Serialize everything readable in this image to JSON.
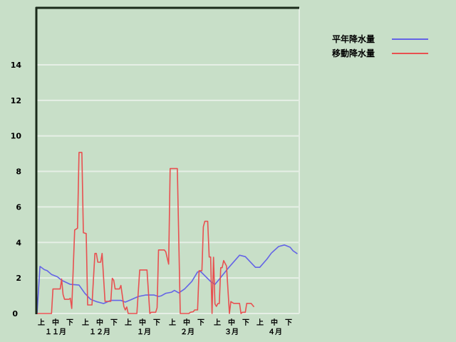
{
  "chart_data": {
    "type": "line",
    "title": "",
    "xlabel": "",
    "ylabel": "",
    "ylim": [
      0,
      17.2
    ],
    "yticks": [
      0,
      2,
      4,
      6,
      8,
      10,
      12,
      14
    ],
    "grid": true,
    "legend_position": "top-right",
    "x_range": [
      "11/1",
      "4/30"
    ],
    "x_dekad_labels": [
      "上",
      "中",
      "下",
      "上",
      "中",
      "下",
      "上",
      "中",
      "下",
      "上",
      "中",
      "下",
      "上",
      "中",
      "下",
      "上",
      "中",
      "下"
    ],
    "x_month_labels": [
      "１１月",
      "１２月",
      "１月",
      "２月",
      "３月",
      "４月"
    ],
    "series": [
      {
        "name": "平年降水量",
        "color": "#6464e6",
        "points": [
          [
            "11/1",
            0
          ],
          [
            "11/3",
            2.65
          ],
          [
            "11/6",
            2.47
          ],
          [
            "11/8",
            2.41
          ],
          [
            "11/11",
            2.2
          ],
          [
            "11/15",
            2.07
          ],
          [
            "11/18",
            1.87
          ],
          [
            "11/24",
            1.64
          ],
          [
            "11/30",
            1.6
          ],
          [
            "12/4",
            1.14
          ],
          [
            "12/8",
            0.8
          ],
          [
            "12/12",
            0.67
          ],
          [
            "12/17",
            0.56
          ],
          [
            "12/22",
            0.74
          ],
          [
            "12/29",
            0.74
          ],
          [
            "1/1",
            0.64
          ],
          [
            "1/5",
            0.78
          ],
          [
            "1/10",
            0.96
          ],
          [
            "1/15",
            1.04
          ],
          [
            "1/21",
            1.04
          ],
          [
            "1/24",
            0.96
          ],
          [
            "1/26",
            1.0
          ],
          [
            "1/29",
            1.14
          ],
          [
            "2/2",
            1.2
          ],
          [
            "2/4",
            1.3
          ],
          [
            "2/7",
            1.16
          ],
          [
            "2/11",
            1.38
          ],
          [
            "2/16",
            1.8
          ],
          [
            "2/20",
            2.34
          ],
          [
            "2/22",
            2.37
          ],
          [
            "3/1",
            1.8
          ],
          [
            "3/4",
            1.64
          ],
          [
            "3/7",
            1.93
          ],
          [
            "3/13",
            2.54
          ],
          [
            "3/21",
            3.28
          ],
          [
            "3/25",
            3.2
          ],
          [
            "4/1",
            2.6
          ],
          [
            "4/4",
            2.6
          ],
          [
            "4/9",
            3.07
          ],
          [
            "4/12",
            3.4
          ],
          [
            "4/17",
            3.77
          ],
          [
            "4/21",
            3.86
          ],
          [
            "4/25",
            3.73
          ],
          [
            "4/27",
            3.53
          ],
          [
            "4/30",
            3.36
          ]
        ]
      },
      {
        "name": "移動降水量",
        "color": "#e85050",
        "points": [
          [
            "11/1",
            0
          ],
          [
            "11/11",
            0
          ],
          [
            "11/12",
            1.38
          ],
          [
            "11/17",
            1.38
          ],
          [
            "11/18",
            1.94
          ],
          [
            "11/19",
            1.07
          ],
          [
            "11/20",
            0.8
          ],
          [
            "11/23",
            0.8
          ],
          [
            "11/24",
            0.86
          ],
          [
            "11/25",
            0.28
          ],
          [
            "11/27",
            4.7
          ],
          [
            "11/29",
            4.8
          ],
          [
            "11/30",
            9.07
          ],
          [
            "12/2",
            9.07
          ],
          [
            "12/3",
            4.55
          ],
          [
            "12/5",
            4.5
          ],
          [
            "12/6",
            0.48
          ],
          [
            "12/9",
            0.48
          ],
          [
            "12/11",
            3.38
          ],
          [
            "12/12",
            3.38
          ],
          [
            "12/13",
            2.89
          ],
          [
            "12/15",
            2.89
          ],
          [
            "12/16",
            3.38
          ],
          [
            "12/18",
            0.68
          ],
          [
            "12/22",
            0.68
          ],
          [
            "12/23",
            1.98
          ],
          [
            "12/24",
            1.87
          ],
          [
            "12/25",
            1.38
          ],
          [
            "12/28",
            1.38
          ],
          [
            "12/29",
            1.58
          ],
          [
            "12/31",
            0.4
          ],
          [
            "1/1",
            0.2
          ],
          [
            "1/2",
            0.37
          ],
          [
            "1/3",
            0
          ],
          [
            "1/9",
            0
          ],
          [
            "1/11",
            2.45
          ],
          [
            "1/16",
            2.45
          ],
          [
            "1/18",
            0
          ],
          [
            "1/19",
            0.07
          ],
          [
            "1/22",
            0.07
          ],
          [
            "1/23",
            0.33
          ],
          [
            "1/24",
            3.58
          ],
          [
            "1/28",
            3.58
          ],
          [
            "1/29",
            3.47
          ],
          [
            "1/31",
            2.78
          ],
          [
            "2/1",
            8.16
          ],
          [
            "2/6",
            8.16
          ],
          [
            "2/8",
            0
          ],
          [
            "2/14",
            0
          ],
          [
            "2/15",
            0.07
          ],
          [
            "2/17",
            0.1
          ],
          [
            "2/18",
            0.2
          ],
          [
            "2/20",
            0.2
          ],
          [
            "2/21",
            2.41
          ],
          [
            "2/23",
            2.41
          ],
          [
            "2/24",
            4.88
          ],
          [
            "2/25",
            5.19
          ],
          [
            "2/27",
            5.19
          ],
          [
            "2/28",
            3.18
          ],
          [
            "3/1",
            3.18
          ],
          [
            "3/2",
            0
          ],
          [
            "3/3",
            3.17
          ],
          [
            "3/4",
            0.54
          ],
          [
            "3/5",
            0.4
          ],
          [
            "3/6",
            0.56
          ],
          [
            "3/7",
            0.56
          ],
          [
            "3/8",
            2.58
          ],
          [
            "3/9",
            2.58
          ],
          [
            "3/10",
            2.98
          ],
          [
            "3/12",
            2.67
          ],
          [
            "3/14",
            0
          ],
          [
            "3/15",
            0.67
          ],
          [
            "3/17",
            0.57
          ],
          [
            "3/21",
            0.57
          ],
          [
            "3/22",
            0
          ],
          [
            "3/23",
            0.07
          ],
          [
            "3/25",
            0.07
          ],
          [
            "3/26",
            0.57
          ],
          [
            "3/29",
            0.57
          ],
          [
            "3/31",
            0.37
          ]
        ]
      }
    ]
  }
}
